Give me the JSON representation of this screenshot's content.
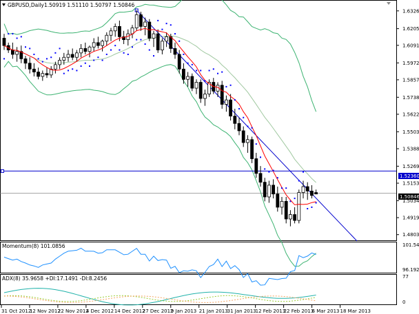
{
  "header": {
    "symbol_label": "GBPUSD,Daily",
    "ohlc": "1.50919 1.51110 1.50797 1.50846"
  },
  "indicators": {
    "momentum_label": "Momentum(8) 101.0856",
    "adx_label": "ADX(8) 35.9658 +DI:17.1491 -DI:8.2456"
  },
  "price_axis": {
    "ticks": [
      "1.63260",
      "1.62050",
      "1.60915",
      "1.59720",
      "1.58570",
      "1.57380",
      "1.56225",
      "1.55035",
      "1.53880",
      "1.52690",
      "1.51535",
      "1.50345",
      "1.49190",
      "1.48035"
    ],
    "hline_label": "1.52360",
    "current_label": "1.50846"
  },
  "momentum_axis": {
    "ticks": [
      "101.5453",
      "96.1927"
    ]
  },
  "adx_axis": {
    "ticks": [
      "77",
      "0"
    ]
  },
  "time_axis": {
    "labels": [
      "31 Oct 2012",
      "12 Nov 2012",
      "22 Nov 2012",
      "4 Dec 2012",
      "14 Dec 2012",
      "27 Dec 2012",
      "9 Jan 2013",
      "21 Jan 2013",
      "31 Jan 2013",
      "12 Feb 2013",
      "22 Feb 2013",
      "6 Mar 2013",
      "18 Mar 2013"
    ]
  },
  "colors": {
    "bull": "#ffffff",
    "bear": "#000000",
    "ma": "#ff0000",
    "bollinger": "#3cb371",
    "sar": "#0000ff",
    "hline": "#0000cd",
    "trendline": "#0000cd",
    "momentum": "#1e90ff",
    "adx_main": "#20b2aa",
    "adx_plus": "#9acd32",
    "adx_minus": "#f4a460"
  },
  "chart_data": {
    "type": "candlestick",
    "instrument": "GBPUSD",
    "timeframe": "Daily",
    "bars": [
      [
        1.614,
        1.617,
        1.606,
        1.609
      ],
      [
        1.609,
        1.611,
        1.604,
        1.606
      ],
      [
        1.606,
        1.611,
        1.6,
        1.603
      ],
      [
        1.603,
        1.608,
        1.598,
        1.605
      ],
      [
        1.605,
        1.609,
        1.597,
        1.6
      ],
      [
        1.6,
        1.602,
        1.593,
        1.597
      ],
      [
        1.597,
        1.601,
        1.59,
        1.593
      ],
      [
        1.593,
        1.597,
        1.588,
        1.591
      ],
      [
        1.591,
        1.594,
        1.586,
        1.588
      ],
      [
        1.588,
        1.592,
        1.585,
        1.59
      ],
      [
        1.59,
        1.594,
        1.587,
        1.589
      ],
      [
        1.589,
        1.595,
        1.587,
        1.593
      ],
      [
        1.593,
        1.598,
        1.59,
        1.596
      ],
      [
        1.596,
        1.601,
        1.593,
        1.599
      ],
      [
        1.599,
        1.604,
        1.596,
        1.601
      ],
      [
        1.601,
        1.606,
        1.598,
        1.603
      ],
      [
        1.603,
        1.607,
        1.599,
        1.601
      ],
      [
        1.601,
        1.606,
        1.598,
        1.604
      ],
      [
        1.604,
        1.61,
        1.601,
        1.607
      ],
      [
        1.607,
        1.611,
        1.603,
        1.605
      ],
      [
        1.605,
        1.609,
        1.601,
        1.608
      ],
      [
        1.608,
        1.614,
        1.605,
        1.611
      ],
      [
        1.611,
        1.615,
        1.607,
        1.609
      ],
      [
        1.609,
        1.613,
        1.605,
        1.612
      ],
      [
        1.612,
        1.618,
        1.609,
        1.616
      ],
      [
        1.616,
        1.621,
        1.612,
        1.619
      ],
      [
        1.619,
        1.624,
        1.615,
        1.622
      ],
      [
        1.622,
        1.626,
        1.612,
        1.615
      ],
      [
        1.615,
        1.619,
        1.61,
        1.613
      ],
      [
        1.613,
        1.62,
        1.609,
        1.617
      ],
      [
        1.617,
        1.623,
        1.614,
        1.621
      ],
      [
        1.621,
        1.633,
        1.619,
        1.63
      ],
      [
        1.63,
        1.632,
        1.619,
        1.622
      ],
      [
        1.622,
        1.628,
        1.616,
        1.625
      ],
      [
        1.625,
        1.627,
        1.612,
        1.614
      ],
      [
        1.614,
        1.619,
        1.608,
        1.617
      ],
      [
        1.617,
        1.62,
        1.604,
        1.606
      ],
      [
        1.606,
        1.614,
        1.603,
        1.612
      ],
      [
        1.612,
        1.618,
        1.608,
        1.615
      ],
      [
        1.615,
        1.617,
        1.604,
        1.607
      ],
      [
        1.607,
        1.611,
        1.6,
        1.603
      ],
      [
        1.603,
        1.606,
        1.59,
        1.593
      ],
      [
        1.593,
        1.597,
        1.583,
        1.586
      ],
      [
        1.586,
        1.591,
        1.581,
        1.588
      ],
      [
        1.588,
        1.59,
        1.578,
        1.58
      ],
      [
        1.58,
        1.586,
        1.576,
        1.584
      ],
      [
        1.584,
        1.586,
        1.57,
        1.573
      ],
      [
        1.573,
        1.579,
        1.568,
        1.576
      ],
      [
        1.576,
        1.586,
        1.574,
        1.584
      ],
      [
        1.584,
        1.587,
        1.576,
        1.578
      ],
      [
        1.578,
        1.584,
        1.574,
        1.582
      ],
      [
        1.582,
        1.585,
        1.566,
        1.569
      ],
      [
        1.569,
        1.575,
        1.564,
        1.572
      ],
      [
        1.572,
        1.576,
        1.558,
        1.561
      ],
      [
        1.561,
        1.566,
        1.552,
        1.556
      ],
      [
        1.556,
        1.56,
        1.548,
        1.551
      ],
      [
        1.551,
        1.554,
        1.54,
        1.543
      ],
      [
        1.543,
        1.548,
        1.536,
        1.545
      ],
      [
        1.545,
        1.547,
        1.529,
        1.532
      ],
      [
        1.532,
        1.536,
        1.519,
        1.522
      ],
      [
        1.522,
        1.527,
        1.513,
        1.516
      ],
      [
        1.516,
        1.519,
        1.503,
        1.506
      ],
      [
        1.506,
        1.517,
        1.502,
        1.514
      ],
      [
        1.514,
        1.518,
        1.505,
        1.508
      ],
      [
        1.508,
        1.513,
        1.496,
        1.499
      ],
      [
        1.499,
        1.506,
        1.494,
        1.503
      ],
      [
        1.503,
        1.506,
        1.488,
        1.491
      ],
      [
        1.491,
        1.497,
        1.486,
        1.494
      ],
      [
        1.494,
        1.499,
        1.488,
        1.49
      ],
      [
        1.49,
        1.511,
        1.488,
        1.509
      ],
      [
        1.509,
        1.517,
        1.505,
        1.513
      ],
      [
        1.513,
        1.516,
        1.504,
        1.51
      ],
      [
        1.51,
        1.514,
        1.505,
        1.507
      ],
      [
        1.509,
        1.511,
        1.508,
        1.508
      ]
    ],
    "horizontal_line": 1.5236,
    "momentum": {
      "ylim": [
        96.1927,
        101.5453
      ]
    },
    "adx": {
      "ylim": [
        0,
        77
      ]
    }
  }
}
